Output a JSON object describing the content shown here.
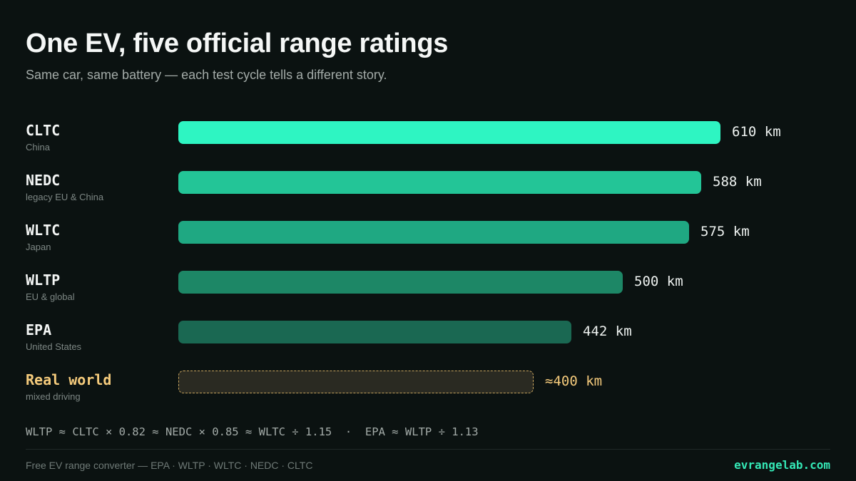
{
  "title": "One EV, five official range ratings",
  "subtitle": "Same car, same battery — each test cycle tells a different story.",
  "formula": "WLTP ≈ CLTC × 0.82 ≈ NEDC × 0.85 ≈ WLTC ÷ 1.15  ·  EPA ≈ WLTP ÷ 1.13",
  "footer": {
    "left": "Free EV range converter — EPA · WLTP · WLTC · NEDC · CLTC",
    "brand": "evrangelab.com"
  },
  "colors": {
    "cltc": "#2ef5c2",
    "nedc": "#23c597",
    "wltc": "#1fa882",
    "wltp": "#1d8766",
    "epa": "#1a6852",
    "real_world": "#c9a55e"
  },
  "chart_data": {
    "type": "bar",
    "orientation": "horizontal",
    "categories": [
      "CLTC",
      "NEDC",
      "WLTC",
      "WLTP",
      "EPA",
      "Real world"
    ],
    "sublabels": [
      "China",
      "legacy EU & China",
      "Japan",
      "EU & global",
      "United States",
      "mixed driving"
    ],
    "values": [
      610,
      588,
      575,
      500,
      442,
      400
    ],
    "value_labels": [
      "610 km",
      "588 km",
      "575 km",
      "500 km",
      "442 km",
      "≈400 km"
    ],
    "unit": "km",
    "xlim": [
      0,
      610
    ],
    "grid": false,
    "legend": "none",
    "title": "One EV, five official range ratings"
  }
}
